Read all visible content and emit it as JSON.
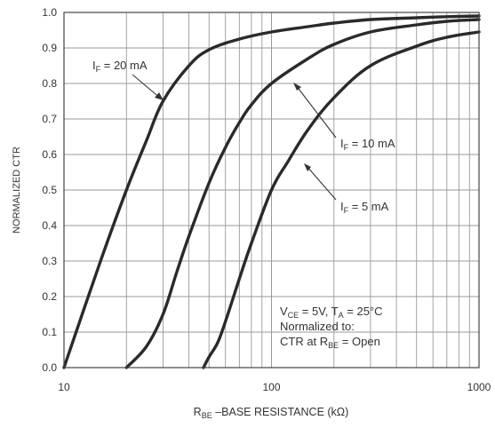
{
  "chart_data": {
    "type": "line",
    "x_scale": "log",
    "xlim": [
      10,
      1000
    ],
    "ylim": [
      0,
      1.0
    ],
    "grid": true,
    "ylabel": "NORMALIZED CTR",
    "xlabel": {
      "main": "R",
      "sub": "BE",
      "rest": " –BASE RESISTANCE (kΩ)"
    },
    "x_ticks": [
      10,
      100,
      1000
    ],
    "x_tick_labels": [
      "10",
      "100",
      "1000"
    ],
    "y_ticks": [
      0.0,
      0.1,
      0.2,
      0.3,
      0.4,
      0.5,
      0.6,
      0.7,
      0.8,
      0.9,
      1.0
    ],
    "y_tick_labels": [
      "0.0",
      "0.1",
      "0.2",
      "0.3",
      "0.4",
      "0.5",
      "0.6",
      "0.7",
      "0.8",
      "0.9",
      "1.0"
    ],
    "series": [
      {
        "name": "I_F = 20 mA",
        "label": {
          "main": "I",
          "sub": "F",
          "rest": " = 20 mA"
        },
        "x": [
          10,
          15,
          20,
          25,
          30,
          40,
          50,
          70,
          100,
          150,
          200,
          300,
          500,
          700,
          1000
        ],
        "y": [
          0.0,
          0.3,
          0.5,
          0.64,
          0.75,
          0.85,
          0.895,
          0.925,
          0.945,
          0.96,
          0.97,
          0.98,
          0.985,
          0.988,
          0.99
        ]
      },
      {
        "name": "I_F = 10 mA",
        "label": {
          "main": "I",
          "sub": "F",
          "rest": " = 10 mA"
        },
        "x": [
          20,
          25,
          30,
          35,
          40,
          50,
          60,
          70,
          80,
          100,
          150,
          200,
          300,
          500,
          700,
          1000
        ],
        "y": [
          0.0,
          0.06,
          0.15,
          0.27,
          0.37,
          0.52,
          0.62,
          0.69,
          0.74,
          0.8,
          0.87,
          0.91,
          0.945,
          0.965,
          0.975,
          0.98
        ]
      },
      {
        "name": "I_F = 5 mA",
        "label": {
          "main": "I",
          "sub": "F",
          "rest": " = 5 mA"
        },
        "x": [
          47,
          50,
          55,
          60,
          70,
          80,
          100,
          120,
          150,
          200,
          300,
          500,
          700,
          1000
        ],
        "y": [
          0.0,
          0.03,
          0.07,
          0.13,
          0.25,
          0.35,
          0.5,
          0.58,
          0.67,
          0.76,
          0.85,
          0.905,
          0.93,
          0.945
        ]
      }
    ],
    "conditions": {
      "line1": {
        "a": "V",
        "a_sub": "CE",
        "b": " = 5V, T",
        "b_sub": "A",
        "c": " = 25°C"
      },
      "line2": "Normalized to:",
      "line3": {
        "a": "CTR at R",
        "a_sub": "BE",
        "b": " = Open"
      }
    }
  }
}
